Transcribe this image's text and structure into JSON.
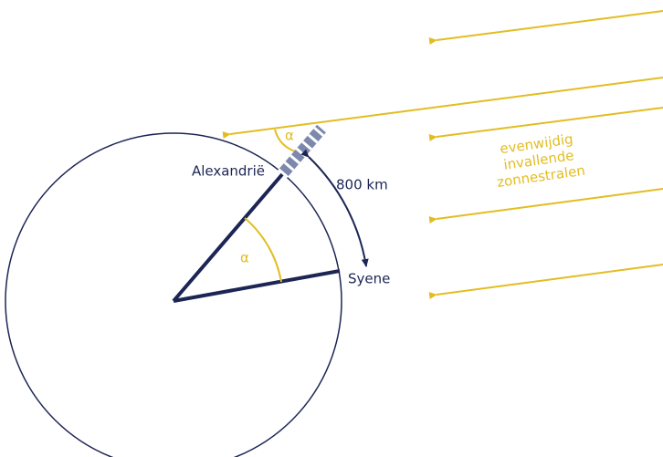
{
  "labels": {
    "alexandria": "Alexandrië",
    "distance": "800 km",
    "syene": "Syene",
    "angle_top": "α",
    "angle_center": "α",
    "rays": [
      "evenwijdig",
      "invallende",
      "zonnestralen"
    ]
  }
}
